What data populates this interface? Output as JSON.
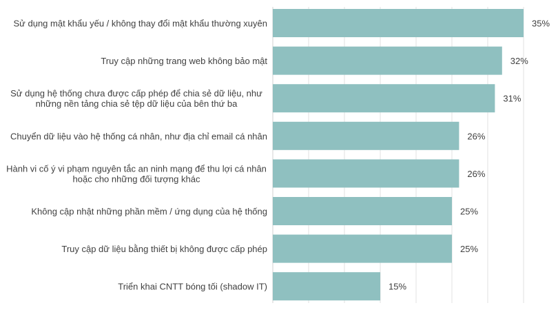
{
  "chart_data": {
    "type": "bar",
    "orientation": "horizontal",
    "categories": [
      [
        "Sử dụng mật khẩu yếu / không thay đổi mật khẩu thường xuyên"
      ],
      [
        "Truy cập những trang web không bảo mật"
      ],
      [
        "Sử dụng hệ thống chưa được cấp phép để chia sẻ dữ liệu, như",
        "những nền tảng chia sẻ tệp dữ liệu của bên thứ ba"
      ],
      [
        "Chuyển dữ liệu vào hệ thống cá nhân, như địa chỉ email cá nhân"
      ],
      [
        "Hành vi cố ý vi phạm nguyên tắc an ninh mạng để thu lợi cá nhân",
        "hoặc cho những đối tượng khác"
      ],
      [
        "Không cập nhật những phần mềm / ứng dụng của hệ thống"
      ],
      [
        "Truy cập dữ liệu bằng thiết bị không được cấp phép"
      ],
      [
        "Triển khai CNTT bóng tối (shadow IT)"
      ]
    ],
    "values": [
      35,
      32,
      31,
      26,
      26,
      25,
      25,
      15
    ],
    "data_labels": [
      "35%",
      "32%",
      "31%",
      "26%",
      "26%",
      "25%",
      "25%",
      "15%"
    ],
    "xlim": [
      0,
      35
    ],
    "grid_step": 5,
    "grid": true,
    "bar_color": "#8fc0c0",
    "title": "",
    "xlabel": "",
    "ylabel": ""
  }
}
